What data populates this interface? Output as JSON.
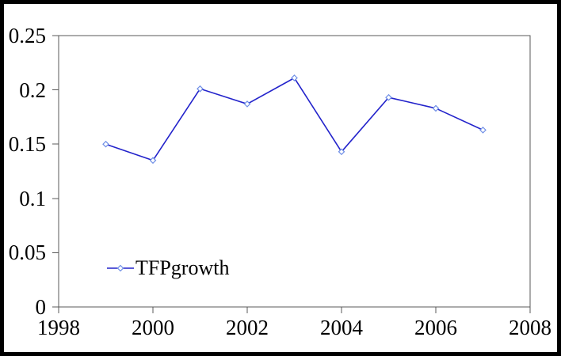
{
  "chart_data": {
    "type": "line",
    "title": "",
    "x": [
      1999,
      2000,
      2001,
      2002,
      2003,
      2004,
      2005,
      2006,
      2007
    ],
    "series": [
      {
        "name": "TFPgrowth",
        "values": [
          0.15,
          0.135,
          0.201,
          0.187,
          0.211,
          0.143,
          0.193,
          0.183,
          0.163
        ]
      }
    ],
    "xlabel": "",
    "ylabel": "",
    "xlim": [
      1998,
      2008
    ],
    "ylim": [
      0,
      0.25
    ],
    "xticks": [
      1998,
      2000,
      2002,
      2004,
      2006,
      2008
    ],
    "xtick_labels": [
      "1998",
      "2000",
      "2002",
      "2004",
      "2006",
      "2008"
    ],
    "yticks": [
      0.25,
      0.2,
      0.15,
      0.1,
      0.05,
      0
    ],
    "ytick_labels": [
      "0.25",
      "0.2",
      "0.15",
      "0.1",
      "0.05",
      "0"
    ],
    "grid": false,
    "legend_position": "inside-lower-left",
    "legend_marker": "open-diamond",
    "colors": {
      "line": "#2323cb",
      "marker_stroke": "#6e8ee6",
      "marker_fill": "#ffffff",
      "axis": "#595959",
      "text": "#000000",
      "background": "#ffffff",
      "frame_border": "#000000"
    }
  }
}
